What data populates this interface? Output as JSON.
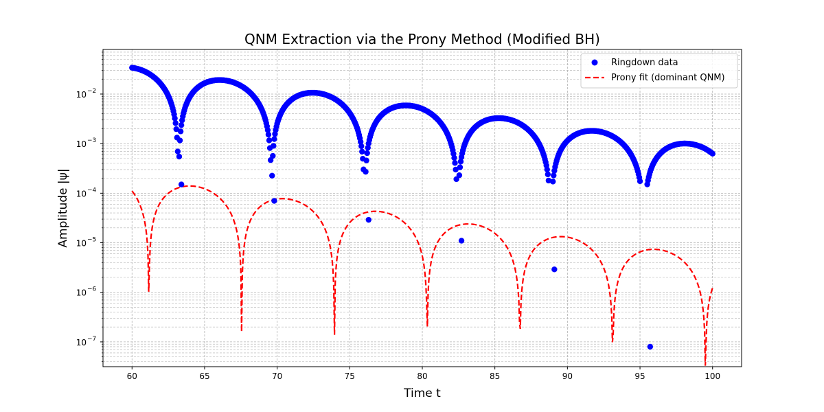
{
  "chart_data": {
    "type": "scatter+line",
    "title": "QNM Extraction via the Prony Method (Modified BH)",
    "xlabel": "Time t",
    "ylabel": "Amplitude |ψ|",
    "xlim": [
      58,
      102
    ],
    "ylim_log10": [
      -7.5,
      -1.1
    ],
    "yscale": "log",
    "grid": "major+minor, dashed",
    "xticks": [
      60,
      65,
      70,
      75,
      80,
      85,
      90,
      95,
      100
    ],
    "yticks_exp": [
      -7,
      -6,
      -5,
      -4,
      -3,
      -2
    ],
    "ytick_labels": [
      "10",
      "10",
      "10",
      "10",
      "10",
      "10"
    ],
    "ytick_exponents": [
      "−7",
      "−6",
      "−5",
      "−4",
      "−3",
      "−2"
    ],
    "legend": {
      "position": "upper right",
      "entries": [
        "Ringdown data",
        "Prony fit (dominant QNM)"
      ]
    },
    "series": [
      {
        "name": "Ringdown data",
        "kind": "scatter",
        "color": "#0000ff",
        "model": {
          "amplitude": 0.034,
          "omega_r": 0.49,
          "damping": 0.092,
          "phase": 0.0,
          "t0": 60,
          "t_end": 100,
          "dt": 0.05,
          "min_value": 2.5e-08
        },
        "dip_points": [
          [
            63.4,
            0.00015
          ],
          [
            69.8,
            7e-05
          ],
          [
            76.3,
            2.9e-05
          ],
          [
            82.7,
            1.1e-05
          ],
          [
            89.1,
            2.9e-06
          ],
          [
            95.7,
            8e-08
          ]
        ]
      },
      {
        "name": "Prony fit (dominant QNM)",
        "kind": "line",
        "style": "dashed",
        "color": "#ff0000",
        "model": {
          "amplitude": 0.000205,
          "omega_r": 0.4915,
          "damping": 0.092,
          "phase": 1.0,
          "t0": 60,
          "t_end": 100,
          "dt": 0.05,
          "floor": 2.5e-08
        }
      }
    ]
  }
}
